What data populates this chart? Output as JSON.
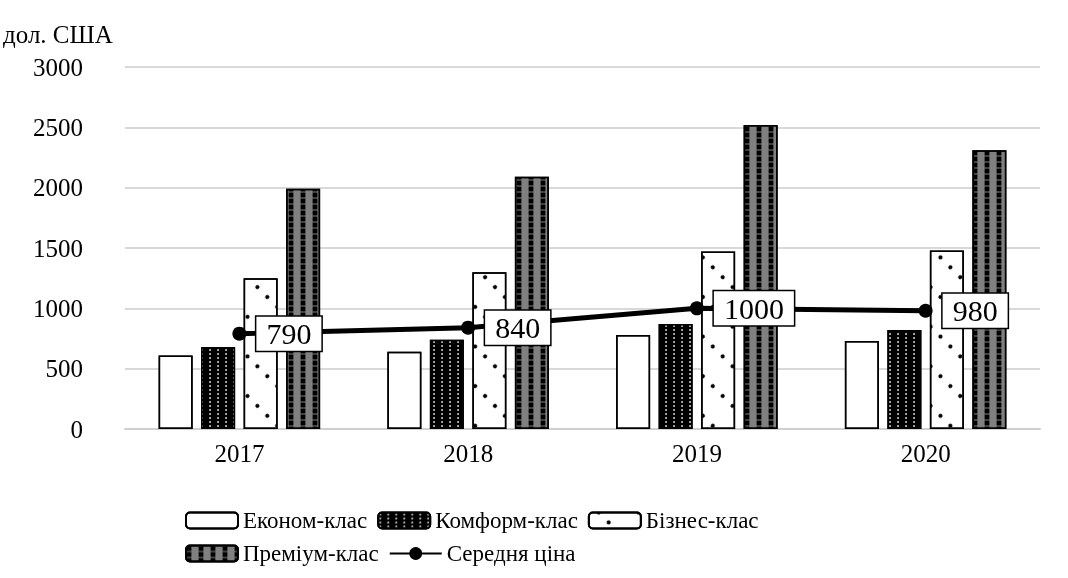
{
  "chart_data": {
    "type": "bar",
    "ylabel": "дол. США",
    "categories": [
      "2017",
      "2018",
      "2019",
      "2020"
    ],
    "series": [
      {
        "name": "Економ-клас",
        "color": "#ffffff",
        "values": [
          610,
          640,
          780,
          730
        ]
      },
      {
        "name": "Комформ-клас",
        "color": "#000000",
        "values": [
          680,
          740,
          870,
          820
        ]
      },
      {
        "name": "Бізнес-клас",
        "color": "#ffffff",
        "values": [
          1250,
          1300,
          1470,
          1480
        ]
      },
      {
        "name": "Преміум-клас",
        "color": "#808080",
        "values": [
          1990,
          2090,
          2520,
          2310
        ]
      },
      {
        "name": "Середня ціна",
        "type": "line",
        "color": "#000000",
        "values": [
          790,
          840,
          1000,
          980
        ],
        "data_labels": true,
        "marker": "circle"
      }
    ],
    "ylim": [
      0,
      3000
    ],
    "yticks": [
      0,
      500,
      1000,
      1500,
      2000,
      2500,
      3000
    ],
    "grid": "y",
    "legend": "bottom"
  }
}
